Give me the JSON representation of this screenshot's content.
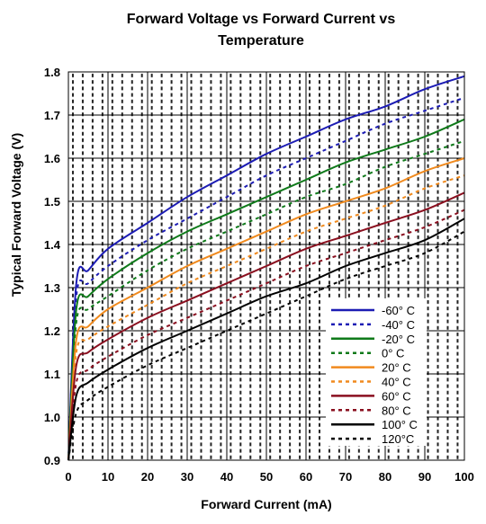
{
  "chart_data": {
    "type": "line",
    "title_line1": "Forward Voltage vs Forward Current vs",
    "title_line2": "Temperature",
    "xlabel": "Forward Current (mA)",
    "ylabel": "Typical Forward Voltage (V)",
    "xlim": [
      0,
      100
    ],
    "ylim": [
      0.9,
      1.8
    ],
    "x_ticks": [
      "0",
      "10",
      "20",
      "30",
      "40",
      "50",
      "60",
      "70",
      "80",
      "90",
      "100"
    ],
    "y_ticks": [
      "0.9",
      "1.0",
      "1.1",
      "1.2",
      "1.3",
      "1.4",
      "1.5",
      "1.6",
      "1.7",
      "1.8"
    ],
    "grid": true,
    "legend_position": "bottom-right",
    "x": [
      0,
      2,
      5,
      10,
      20,
      30,
      40,
      50,
      60,
      70,
      80,
      90,
      100
    ],
    "series": [
      {
        "name": "-60° C",
        "color": "#1c1cb4",
        "dash": "solid",
        "values": [
          0.9,
          1.31,
          1.34,
          1.39,
          1.45,
          1.51,
          1.56,
          1.61,
          1.65,
          1.69,
          1.72,
          1.76,
          1.79
        ]
      },
      {
        "name": "-40° C",
        "color": "#1c1cb4",
        "dash": "dashed",
        "values": [
          0.9,
          1.28,
          1.31,
          1.35,
          1.41,
          1.46,
          1.51,
          1.56,
          1.6,
          1.64,
          1.68,
          1.71,
          1.74
        ]
      },
      {
        "name": "-20° C",
        "color": "#0f7a1a",
        "dash": "solid",
        "values": [
          0.9,
          1.25,
          1.28,
          1.32,
          1.38,
          1.43,
          1.47,
          1.51,
          1.55,
          1.59,
          1.62,
          1.65,
          1.69
        ]
      },
      {
        "name": "0° C",
        "color": "#0f7a1a",
        "dash": "dashed",
        "values": [
          0.9,
          1.22,
          1.25,
          1.28,
          1.34,
          1.39,
          1.43,
          1.47,
          1.51,
          1.54,
          1.58,
          1.61,
          1.64
        ]
      },
      {
        "name": "20° C",
        "color": "#f08a1e",
        "dash": "solid",
        "values": [
          0.9,
          1.18,
          1.21,
          1.25,
          1.3,
          1.35,
          1.39,
          1.43,
          1.47,
          1.5,
          1.53,
          1.57,
          1.6
        ]
      },
      {
        "name": "40° C",
        "color": "#f08a1e",
        "dash": "dashed",
        "values": [
          0.9,
          1.15,
          1.18,
          1.21,
          1.26,
          1.31,
          1.35,
          1.39,
          1.43,
          1.46,
          1.49,
          1.53,
          1.56
        ]
      },
      {
        "name": "60° C",
        "color": "#8a0f1f",
        "dash": "solid",
        "values": [
          0.9,
          1.12,
          1.15,
          1.18,
          1.23,
          1.27,
          1.31,
          1.35,
          1.39,
          1.42,
          1.45,
          1.48,
          1.52
        ]
      },
      {
        "name": "80° C",
        "color": "#8a0f1f",
        "dash": "dashed",
        "values": [
          0.9,
          1.08,
          1.11,
          1.14,
          1.19,
          1.23,
          1.27,
          1.31,
          1.35,
          1.38,
          1.41,
          1.44,
          1.48
        ]
      },
      {
        "name": "100° C",
        "color": "#000000",
        "dash": "solid",
        "values": [
          0.9,
          1.05,
          1.08,
          1.11,
          1.16,
          1.2,
          1.24,
          1.28,
          1.31,
          1.35,
          1.38,
          1.41,
          1.46
        ]
      },
      {
        "name": "120°C",
        "color": "#000000",
        "dash": "dashed",
        "values": [
          0.9,
          1.01,
          1.04,
          1.07,
          1.12,
          1.16,
          1.2,
          1.24,
          1.28,
          1.32,
          1.35,
          1.38,
          1.43
        ]
      }
    ]
  }
}
